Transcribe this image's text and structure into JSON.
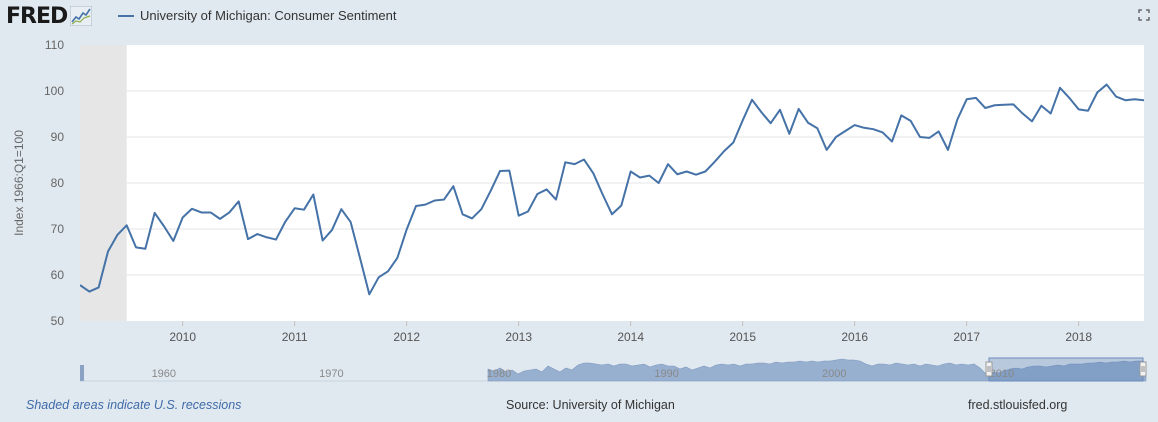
{
  "header": {
    "logo_text": "FRED",
    "logo_icon": "line-chart-icon",
    "fullscreen_icon": "fullscreen-icon"
  },
  "footer": {
    "recession_note": "Shaded areas indicate U.S. recessions",
    "source": "Source: University of Michigan",
    "site": "fred.stlouisfed.org"
  },
  "colors": {
    "series": "#4572a7",
    "recession": "#e6e6e6",
    "background": "#e1e9f0",
    "plot": "#ffffff"
  },
  "chart_data": {
    "type": "line",
    "title": "",
    "ylabel": "Index 1966:Q1=100",
    "xlabel": "",
    "ylim": [
      50,
      110
    ],
    "yticks": [
      50,
      60,
      70,
      80,
      90,
      100,
      110
    ],
    "xlim": [
      "2009-02",
      "2018-08"
    ],
    "xticks": [
      "2010",
      "2011",
      "2012",
      "2013",
      "2014",
      "2015",
      "2016",
      "2017",
      "2018"
    ],
    "grid": true,
    "legend_placement": "top-left",
    "recessions": [
      {
        "start": "2009-02",
        "end": "2009-06"
      }
    ],
    "series": [
      {
        "name": "University of Michigan: Consumer Sentiment",
        "start": "2009-02",
        "frequency": "monthly",
        "values": [
          57.8,
          56.4,
          57.3,
          65.1,
          68.7,
          70.8,
          66.0,
          65.7,
          73.5,
          70.6,
          67.4,
          72.5,
          74.4,
          73.6,
          73.6,
          72.2,
          73.6,
          76.0,
          67.8,
          68.9,
          68.2,
          67.7,
          71.6,
          74.5,
          74.2,
          77.5,
          67.5,
          69.8,
          74.3,
          71.5,
          63.7,
          55.8,
          59.5,
          60.8,
          63.7,
          69.9,
          75.0,
          75.3,
          76.2,
          76.4,
          79.3,
          73.2,
          72.3,
          74.3,
          78.3,
          82.6,
          82.7,
          72.9,
          73.8,
          77.6,
          78.6,
          76.4,
          84.5,
          84.1,
          85.1,
          82.1,
          77.5,
          73.2,
          75.1,
          82.5,
          81.2,
          81.6,
          80.0,
          84.1,
          81.9,
          82.5,
          81.8,
          82.5,
          84.6,
          86.9,
          88.8,
          93.6,
          98.1,
          95.4,
          93.0,
          95.9,
          90.7,
          96.1,
          93.1,
          91.9,
          87.2,
          90.0,
          91.3,
          92.6,
          92.0,
          91.7,
          91.0,
          89.0,
          94.7,
          93.5,
          90.0,
          89.8,
          91.2,
          87.2,
          93.8,
          98.2,
          98.5,
          96.3,
          96.9,
          97.0,
          97.1,
          95.1,
          93.4,
          96.8,
          95.1,
          100.7,
          98.5,
          96.0,
          95.7,
          99.7,
          101.4,
          98.8,
          98.0,
          98.2,
          98.0,
          97.9,
          96.2
        ]
      }
    ]
  },
  "navigator": {
    "labels": [
      "1960",
      "1970",
      "1980",
      "1990",
      "2000",
      "2010"
    ],
    "handle_icon": "drag-handle-icon"
  }
}
